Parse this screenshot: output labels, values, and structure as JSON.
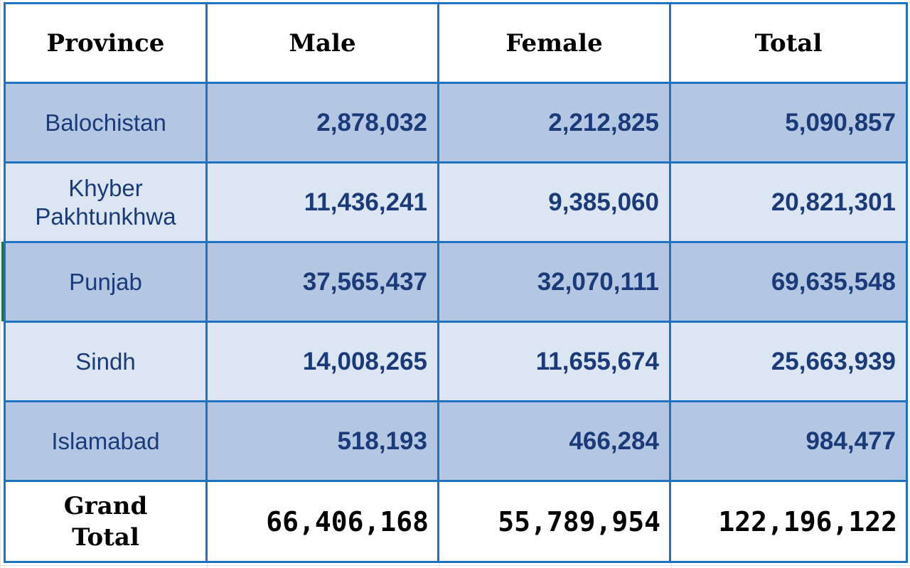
{
  "table": {
    "headers": {
      "province": "Province",
      "male": "Male",
      "female": "Female",
      "total": "Total"
    },
    "rows": [
      {
        "province": "Balochistan",
        "male": "2,878,032",
        "female": "2,212,825",
        "total": "5,090,857"
      },
      {
        "province_line1": "Khyber",
        "province_line2": "Pakhtunkhwa",
        "male": "11,436,241",
        "female": "9,385,060",
        "total": "20,821,301"
      },
      {
        "province": "Punjab",
        "male": "37,565,437",
        "female": "32,070,111",
        "total": "69,635,548"
      },
      {
        "province": "Sindh",
        "male": "14,008,265",
        "female": "11,655,674",
        "total": "25,663,939"
      },
      {
        "province": "Islamabad",
        "male": "518,193",
        "female": "466,284",
        "total": "984,477"
      }
    ],
    "grand_total": {
      "label_line1": "Grand",
      "label_line2": "Total",
      "male": "66,406,168",
      "female": "55,789,954",
      "total": "122,196,122"
    }
  },
  "colors": {
    "border": "#1f72c0",
    "row_dark": "#b4c7e2",
    "row_light": "#dce6f2",
    "body_text": "#1b3a7a",
    "selection_marker": "#1e7145"
  }
}
